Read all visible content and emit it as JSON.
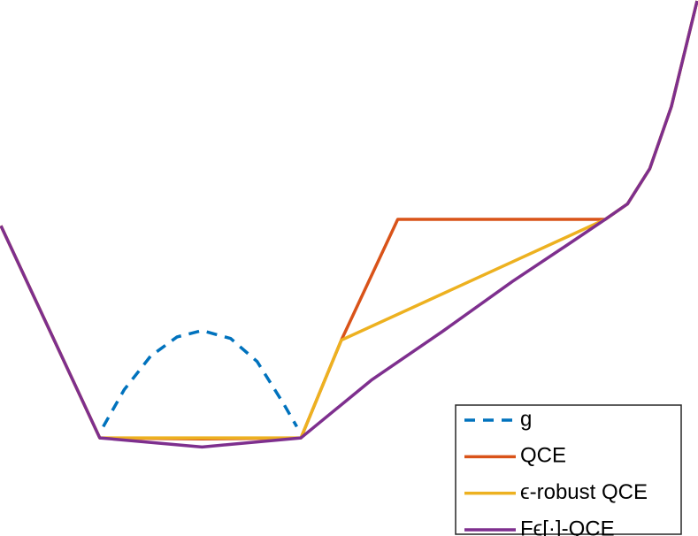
{
  "chart_data": {
    "type": "line",
    "xlim": [
      0,
      10
    ],
    "ylim": [
      0,
      10
    ],
    "legend": "lower right",
    "series": [
      {
        "name": "g",
        "color": "#0072BD",
        "dash": true,
        "x": [
          1.47,
          1.77,
          2.15,
          2.53,
          2.89,
          3.3,
          3.68,
          4.06,
          4.25
        ],
        "values": [
          2.03,
          2.72,
          3.35,
          3.71,
          3.83,
          3.68,
          3.25,
          2.46,
          2.03
        ]
      },
      {
        "name": "QCE",
        "color": "#D95319",
        "x": [
          0,
          1.42,
          2.89,
          4.31,
          4.89,
          5.7,
          8.68,
          9.0,
          9.32,
          9.63,
          10
        ],
        "values": [
          5.79,
          1.82,
          1.8,
          1.82,
          3.65,
          5.91,
          5.91,
          6.2,
          6.86,
          8.02,
          10
        ]
      },
      {
        "name": "ϵ-robust QCE",
        "color": "#EDB120",
        "x": [
          0,
          1.42,
          4.31,
          4.89,
          8.68,
          9.0,
          9.32,
          9.63,
          10
        ],
        "values": [
          5.79,
          1.82,
          1.82,
          3.65,
          5.91,
          6.2,
          6.86,
          8.02,
          10
        ]
      },
      {
        "name": "Fϵ[·]-QCE",
        "color": "#7E2F8E",
        "x": [
          0,
          1.42,
          2.89,
          4.31,
          5.32,
          6.34,
          7.35,
          8.11,
          8.68,
          9.0,
          9.32,
          9.63,
          10
        ],
        "values": [
          5.79,
          1.82,
          1.65,
          1.82,
          2.9,
          3.81,
          4.75,
          5.41,
          5.91,
          6.2,
          6.86,
          8.02,
          10
        ]
      }
    ]
  }
}
